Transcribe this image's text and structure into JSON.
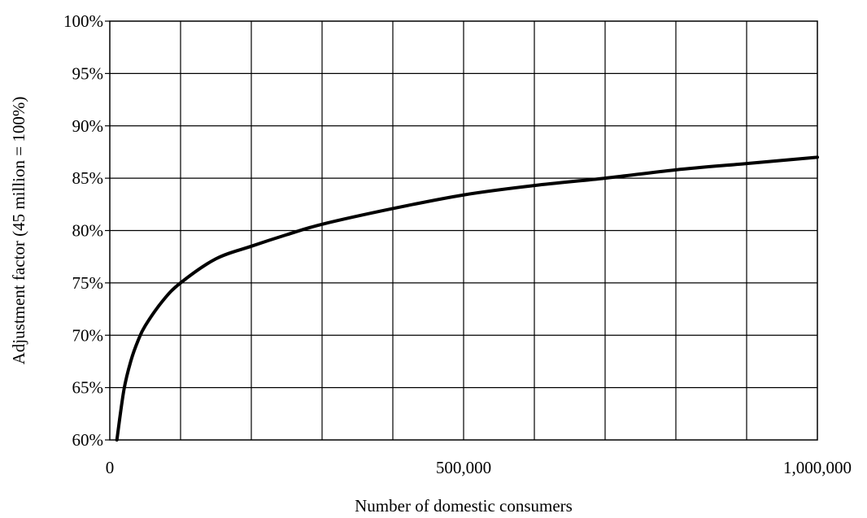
{
  "chart_data": {
    "type": "line",
    "title": "",
    "xlabel": "Number of domestic consumers",
    "ylabel": "Adjustment factor (45 million = 100%)",
    "xlim": [
      0,
      1000000
    ],
    "ylim": [
      60,
      100
    ],
    "x_ticks": [
      {
        "value": 0,
        "label": "0"
      },
      {
        "value": 500000,
        "label": "500,000"
      },
      {
        "value": 1000000,
        "label": "1,000,000"
      }
    ],
    "y_ticks": [
      {
        "value": 100,
        "label": "100%"
      },
      {
        "value": 95,
        "label": "95%"
      },
      {
        "value": 90,
        "label": "90%"
      },
      {
        "value": 85,
        "label": "85%"
      },
      {
        "value": 80,
        "label": "80%"
      },
      {
        "value": 75,
        "label": "75%"
      },
      {
        "value": 70,
        "label": "70%"
      },
      {
        "value": 65,
        "label": "65%"
      },
      {
        "value": 60,
        "label": "60%"
      }
    ],
    "x_grid_step": 100000,
    "grid": true,
    "series": [
      {
        "x": [
          10000,
          20000,
          30000,
          40000,
          50000,
          75000,
          100000,
          150000,
          200000,
          250000,
          300000,
          400000,
          500000,
          600000,
          700000,
          800000,
          900000,
          1000000
        ],
        "y": [
          60.0,
          64.8,
          67.6,
          69.5,
          70.9,
          73.3,
          75.0,
          77.3,
          78.5,
          79.6,
          80.6,
          82.1,
          83.4,
          84.3,
          85.0,
          85.8,
          86.4,
          87.0
        ]
      }
    ]
  },
  "colors": {
    "line": "#000000",
    "grid": "#000000",
    "background": "#ffffff"
  }
}
